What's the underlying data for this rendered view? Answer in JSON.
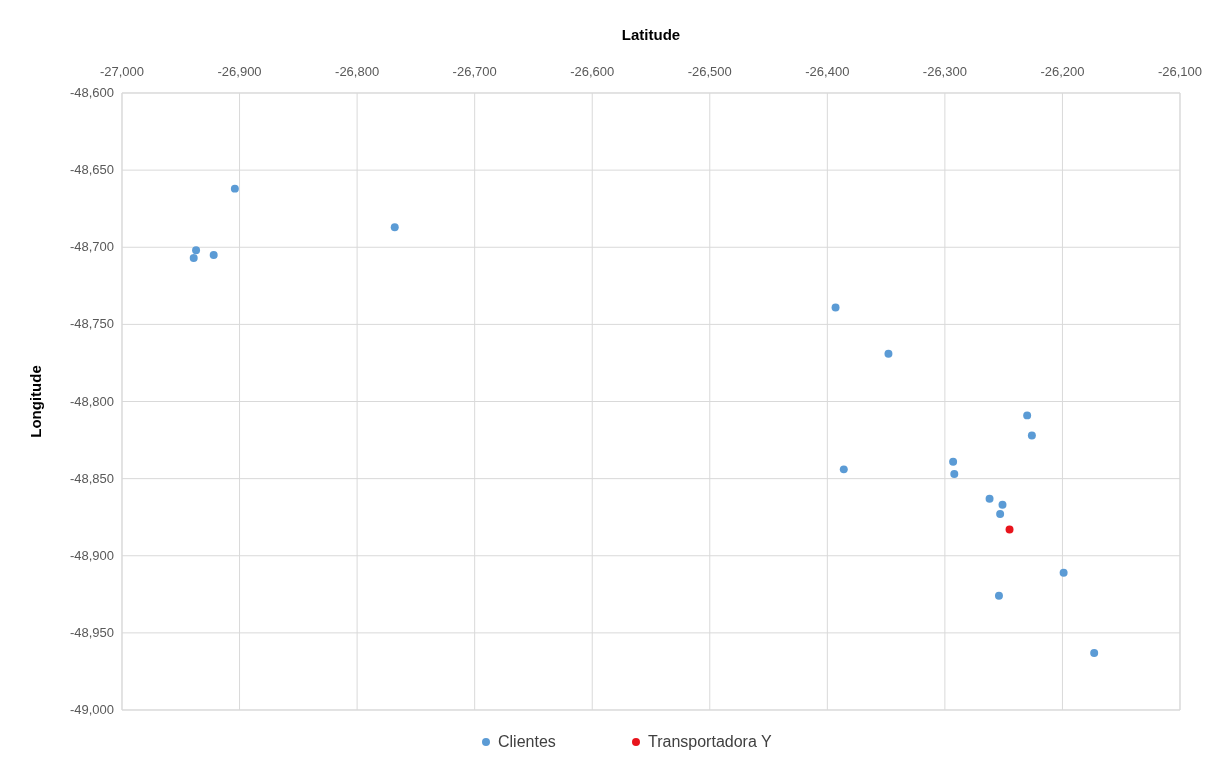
{
  "chart_data": {
    "type": "scatter",
    "xlabel": "Latitude",
    "ylabel": "Longitude",
    "xlim": [
      -27000,
      -26100
    ],
    "xticks": [
      {
        "value": -27000,
        "label": "-27,000"
      },
      {
        "value": -26900,
        "label": "-26,900"
      },
      {
        "value": -26800,
        "label": "-26,800"
      },
      {
        "value": -26700,
        "label": "-26,700"
      },
      {
        "value": -26600,
        "label": "-26,600"
      },
      {
        "value": -26500,
        "label": "-26,500"
      },
      {
        "value": -26400,
        "label": "-26,400"
      },
      {
        "value": -26300,
        "label": "-26,300"
      },
      {
        "value": -26200,
        "label": "-26,200"
      },
      {
        "value": -26100,
        "label": "-26,100"
      }
    ],
    "ylim": [
      -49000,
      -48600
    ],
    "yticks": [
      {
        "value": -49000,
        "label": "-49,000"
      },
      {
        "value": -48950,
        "label": "-48,950"
      },
      {
        "value": -48900,
        "label": "-48,900"
      },
      {
        "value": -48850,
        "label": "-48,850"
      },
      {
        "value": -48800,
        "label": "-48,800"
      },
      {
        "value": -48750,
        "label": "-48,750"
      },
      {
        "value": -48700,
        "label": "-48,700"
      },
      {
        "value": -48650,
        "label": "-48,650"
      },
      {
        "value": -48600,
        "label": "-48,600"
      }
    ],
    "grid": true,
    "legend": "bottom",
    "marker": "circle",
    "series": [
      {
        "name": "Clientes",
        "color": "#5b9bd5",
        "x": [
          -26904,
          -26937,
          -26939,
          -26922,
          -26768,
          -26393,
          -26348,
          -26230,
          -26226,
          -26386,
          -26293,
          -26292,
          -26262,
          -26251,
          -26253,
          -26199,
          -26254,
          -26173
        ],
        "values": [
          -48662,
          -48702,
          -48707,
          -48705,
          -48687,
          -48739,
          -48769,
          -48809,
          -48822,
          -48844,
          -48839,
          -48847,
          -48863,
          -48867,
          -48873,
          -48911,
          -48926,
          -48963
        ]
      },
      {
        "name": "Transportadora Y",
        "color": "#e8141c",
        "x": [
          -26245
        ],
        "values": [
          -48883
        ]
      }
    ]
  }
}
